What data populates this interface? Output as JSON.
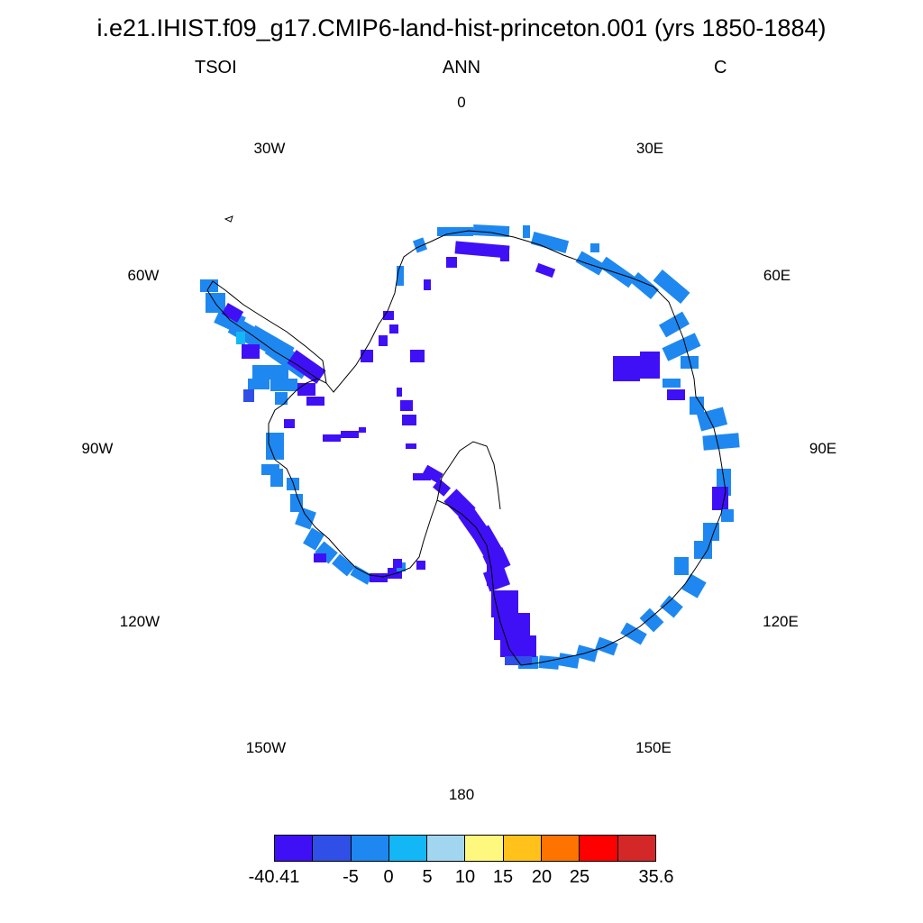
{
  "title": "i.e21.IHIST.f09_g17.CMIP6-land-hist-princeton.001 (yrs 1850-1884)",
  "subtitle_left": "TSOI",
  "subtitle_center": "ANN",
  "subtitle_right": "C",
  "longitude_labels": [
    "0",
    "30E",
    "60E",
    "90E",
    "120E",
    "150E",
    "180",
    "150W",
    "120W",
    "90W",
    "60W",
    "30W"
  ],
  "colorbar": {
    "colors": [
      "#3f10f5",
      "#2f4fe6",
      "#1e88f0",
      "#14b7f5",
      "#a2d6f0",
      "#fff87e",
      "#ffc11a",
      "#ff7300",
      "#ff0000",
      "#d42828"
    ],
    "labels": [
      "-40.41",
      "-5",
      "0",
      "5",
      "10",
      "15",
      "20",
      "25",
      "35.6"
    ]
  },
  "map": {
    "projection": "south-polar-stereographic",
    "variable": "TSOI",
    "data_color_low": "#3f10f5",
    "data_color_mid": "#2f4fe6",
    "data_color_zero": "#1e88f0",
    "data_color_pos": "#14b7f5",
    "coastline_color": "#000000"
  }
}
